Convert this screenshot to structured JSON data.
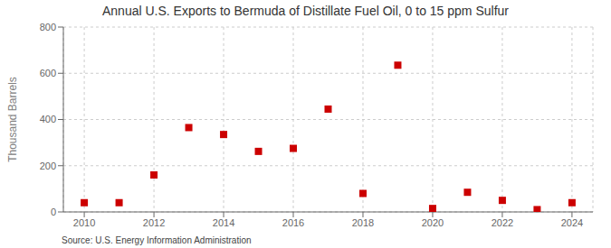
{
  "chart_data": {
    "type": "scatter",
    "title": "Annual U.S. Exports to Bermuda of Distillate Fuel Oil, 0 to 15 ppm Sulfur",
    "ylabel": "Thousand Barrels",
    "source": "Source: U.S. Energy Information Administration",
    "x": [
      2010,
      2011,
      2012,
      2013,
      2014,
      2015,
      2016,
      2017,
      2018,
      2019,
      2020,
      2021,
      2022,
      2023,
      2024
    ],
    "values": [
      40,
      40,
      160,
      365,
      335,
      262,
      275,
      445,
      80,
      635,
      15,
      85,
      50,
      10,
      40
    ],
    "color": "#cc0000",
    "marker": "square",
    "xlim": [
      2009.4,
      2024.6
    ],
    "xticks": [
      2010,
      2012,
      2014,
      2016,
      2018,
      2020,
      2022,
      2024
    ],
    "ylim": [
      0,
      800
    ],
    "yticks": [
      0,
      200,
      400,
      600,
      800
    ],
    "grid": true
  }
}
